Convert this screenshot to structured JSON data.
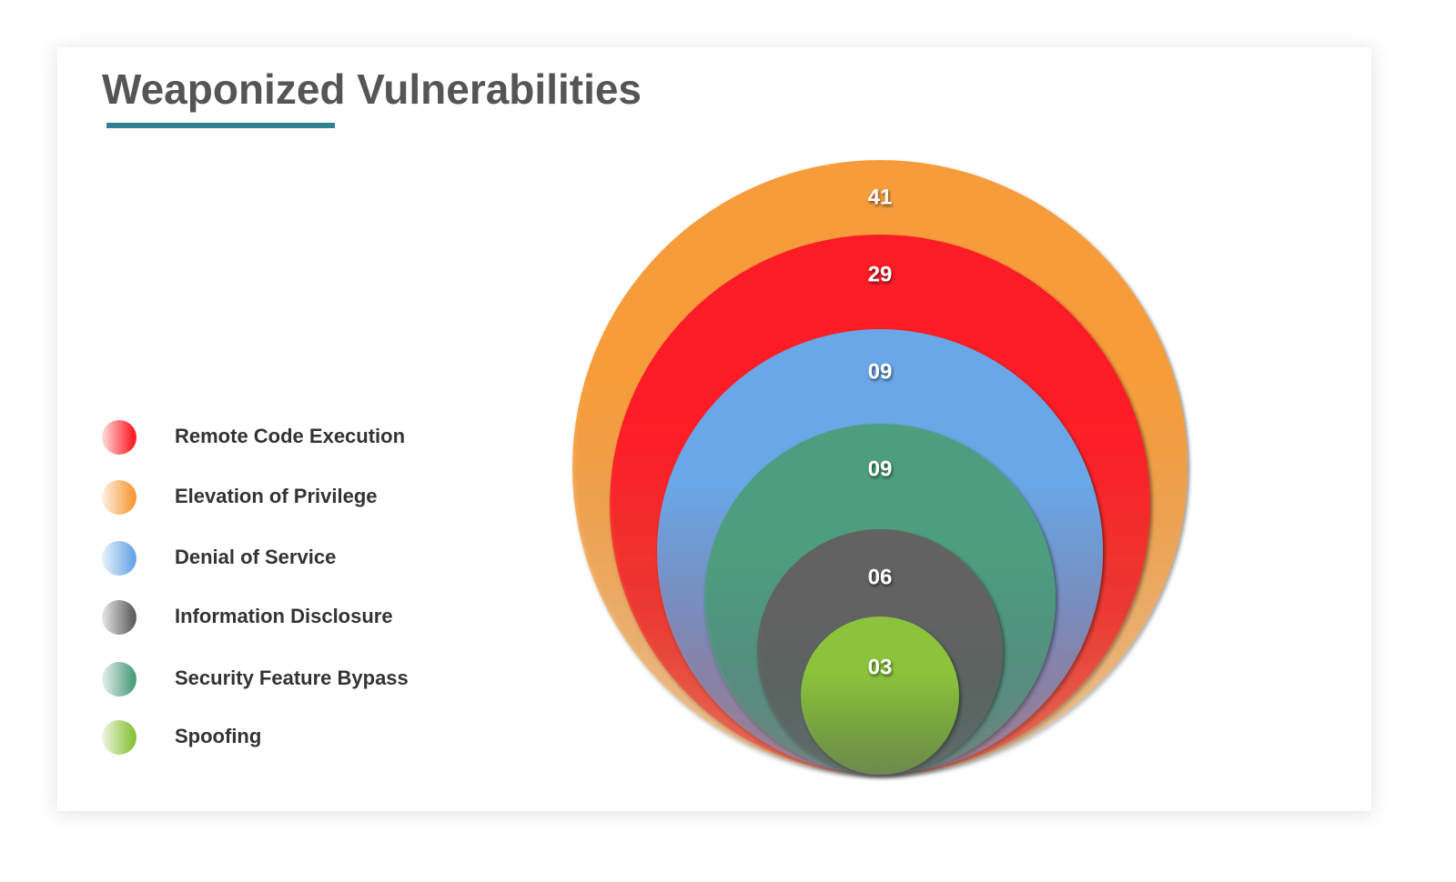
{
  "chart_data": {
    "type": "nested-circles",
    "title": "Weaponized Vulnerabilities",
    "series": [
      {
        "name": "Remote Code Execution",
        "color": "#fe1f28",
        "values": [
          29
        ],
        "value_labels": [
          "29"
        ]
      },
      {
        "name": "Elevation of Privilege",
        "color": "#f79c3a",
        "values": [
          41
        ],
        "value_labels": [
          "41"
        ]
      },
      {
        "name": "Denial of Service",
        "color": "#6aa7e6",
        "values": [
          9
        ],
        "value_labels": [
          "09"
        ]
      },
      {
        "name": "Information Disclosure",
        "color": "#626262",
        "values": [
          6
        ],
        "value_labels": [
          "06"
        ]
      },
      {
        "name": "Security Feature Bypass",
        "color": "#4e9e7e",
        "values": [
          9
        ],
        "value_labels": [
          "09"
        ]
      },
      {
        "name": "Spoofing",
        "color": "#8bc33c",
        "values": [
          3
        ],
        "value_labels": [
          "03"
        ]
      }
    ]
  }
}
